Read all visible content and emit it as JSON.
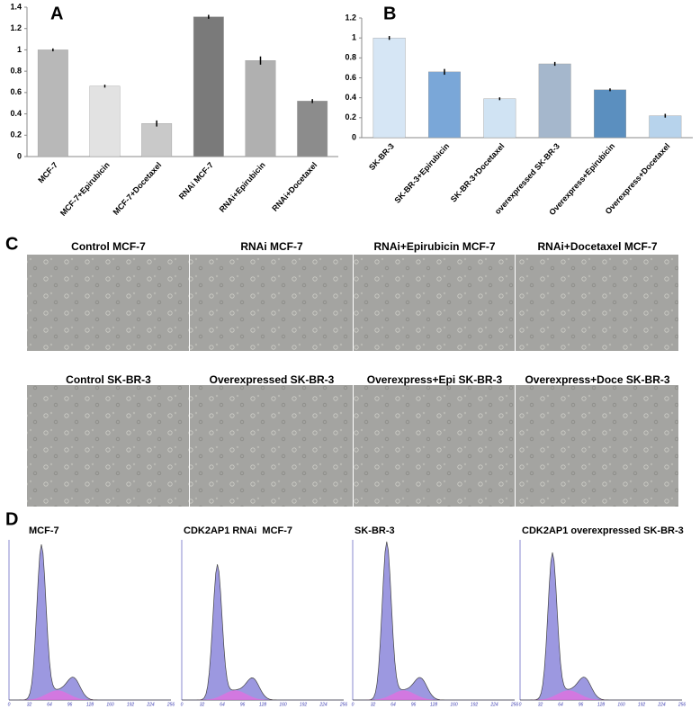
{
  "panel_labels": [
    "A",
    "B",
    "C",
    "D"
  ],
  "chart_data": [
    {
      "type": "bar",
      "categories": [
        "MCF-7",
        "MCF-7+Epirubicin",
        "MCF-7+Docetaxel",
        "RNAi MCF-7",
        "RNAi+Epirubicin",
        "RNAi+Docetaxel"
      ],
      "values": [
        1.0,
        0.66,
        0.31,
        1.31,
        0.9,
        0.52
      ],
      "errors": [
        0.005,
        0.005,
        0.02,
        0.01,
        0.03,
        0.01
      ],
      "colors": [
        "#b8b8b8",
        "#e2e2e2",
        "#c9c9c9",
        "#7a7a7a",
        "#b0b0b0",
        "#8c8c8c"
      ],
      "ylim": [
        0,
        1.4
      ],
      "yticks": [
        0,
        0.2,
        0.4,
        0.6,
        0.8,
        1,
        1.2,
        1.4
      ]
    },
    {
      "type": "bar",
      "categories": [
        "SK-BR-3",
        "SK-BR-3+Epirubicin",
        "SK-BR-3+Docetaxel",
        "overexpressed SK-BR-3",
        "Overexpress+Epirubicin",
        "Overexpress+Docetaxel"
      ],
      "values": [
        1.0,
        0.66,
        0.39,
        0.74,
        0.48,
        0.22
      ],
      "errors": [
        0.01,
        0.02,
        0.005,
        0.01,
        0.005,
        0.01
      ],
      "colors": [
        "#d6e6f5",
        "#7aa7d8",
        "#d0e3f3",
        "#a5b7cc",
        "#5b8fbf",
        "#b7d3ec"
      ],
      "ylim": [
        0,
        1.2
      ],
      "yticks": [
        0,
        0.2,
        0.4,
        0.6,
        0.8,
        1,
        1.2
      ]
    }
  ],
  "micrographs": {
    "row1": [
      "Control MCF-7",
      "RNAi MCF-7",
      "RNAi+Epirubicin MCF-7",
      "RNAi+Docetaxel MCF-7"
    ],
    "row2": [
      "Control SK-BR-3",
      "Overexpressed SK-BR-3",
      "Overexpress+Epi SK-BR-3",
      "Overexpress+Doce SK-BR-3"
    ]
  },
  "flow": {
    "titles": [
      "MCF-7",
      "CDK2AP1 RNAi  MCF-7",
      "SK-BR-3",
      "CDK2AP1 overexpressed SK-BR-3"
    ],
    "xticks": [
      0,
      32,
      64,
      96,
      128,
      160,
      192,
      224,
      256
    ]
  }
}
